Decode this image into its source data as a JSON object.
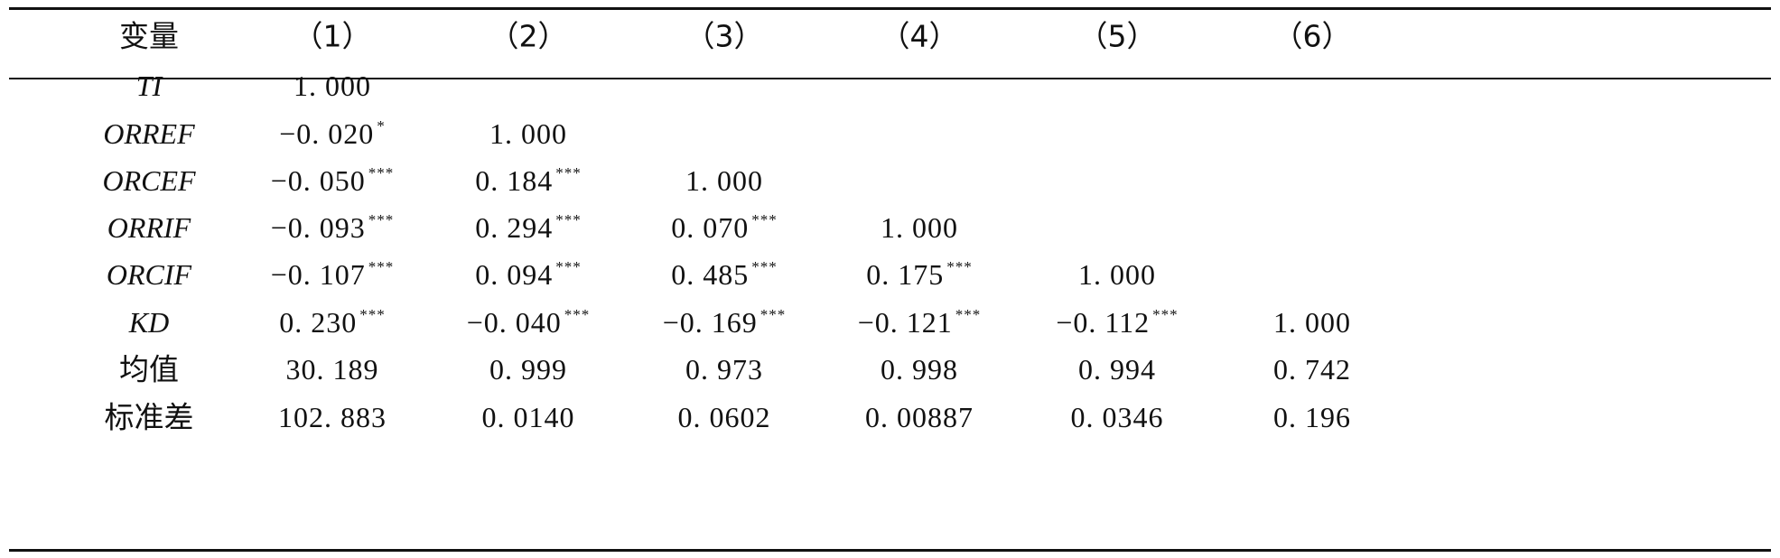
{
  "table": {
    "header": [
      "变量",
      "（1）",
      "（2）",
      "（3）",
      "（4）",
      "（5）",
      "（6）"
    ],
    "rows": [
      {
        "label": "TI",
        "italic": true,
        "cells": [
          {
            "v": "1. 000",
            "s": ""
          },
          {
            "v": "",
            "s": ""
          },
          {
            "v": "",
            "s": ""
          },
          {
            "v": "",
            "s": ""
          },
          {
            "v": "",
            "s": ""
          },
          {
            "v": "",
            "s": ""
          }
        ]
      },
      {
        "label": "ORREF",
        "italic": true,
        "cells": [
          {
            "v": "−0. 020",
            "s": "*"
          },
          {
            "v": "1. 000",
            "s": ""
          },
          {
            "v": "",
            "s": ""
          },
          {
            "v": "",
            "s": ""
          },
          {
            "v": "",
            "s": ""
          },
          {
            "v": "",
            "s": ""
          }
        ]
      },
      {
        "label": "ORCEF",
        "italic": true,
        "cells": [
          {
            "v": "−0. 050",
            "s": "***"
          },
          {
            "v": "0. 184",
            "s": "***"
          },
          {
            "v": "1. 000",
            "s": ""
          },
          {
            "v": "",
            "s": ""
          },
          {
            "v": "",
            "s": ""
          },
          {
            "v": "",
            "s": ""
          }
        ]
      },
      {
        "label": "ORRIF",
        "italic": true,
        "cells": [
          {
            "v": "−0. 093",
            "s": "***"
          },
          {
            "v": "0. 294",
            "s": "***"
          },
          {
            "v": "0. 070",
            "s": "***"
          },
          {
            "v": "1. 000",
            "s": ""
          },
          {
            "v": "",
            "s": ""
          },
          {
            "v": "",
            "s": ""
          }
        ]
      },
      {
        "label": "ORCIF",
        "italic": true,
        "cells": [
          {
            "v": "−0. 107",
            "s": "***"
          },
          {
            "v": "0. 094",
            "s": "***"
          },
          {
            "v": "0. 485",
            "s": "***"
          },
          {
            "v": "0. 175",
            "s": "***"
          },
          {
            "v": "1. 000",
            "s": ""
          },
          {
            "v": "",
            "s": ""
          }
        ]
      },
      {
        "label": "KD",
        "italic": true,
        "cells": [
          {
            "v": "0. 230",
            "s": "***"
          },
          {
            "v": "−0. 040",
            "s": "***"
          },
          {
            "v": "−0. 169",
            "s": "***"
          },
          {
            "v": "−0. 121",
            "s": "***"
          },
          {
            "v": "−0. 112",
            "s": "***"
          },
          {
            "v": "1. 000",
            "s": ""
          }
        ]
      },
      {
        "label": "均值",
        "italic": false,
        "cells": [
          {
            "v": "30. 189",
            "s": ""
          },
          {
            "v": "0. 999",
            "s": ""
          },
          {
            "v": "0. 973",
            "s": ""
          },
          {
            "v": "0. 998",
            "s": ""
          },
          {
            "v": "0. 994",
            "s": ""
          },
          {
            "v": "0. 742",
            "s": ""
          }
        ]
      },
      {
        "label": "标准差",
        "italic": false,
        "cells": [
          {
            "v": "102. 883",
            "s": ""
          },
          {
            "v": "0. 0140",
            "s": ""
          },
          {
            "v": "0. 0602",
            "s": ""
          },
          {
            "v": "0. 00887",
            "s": ""
          },
          {
            "v": "0. 0346",
            "s": ""
          },
          {
            "v": "0. 196",
            "s": ""
          }
        ]
      }
    ]
  }
}
